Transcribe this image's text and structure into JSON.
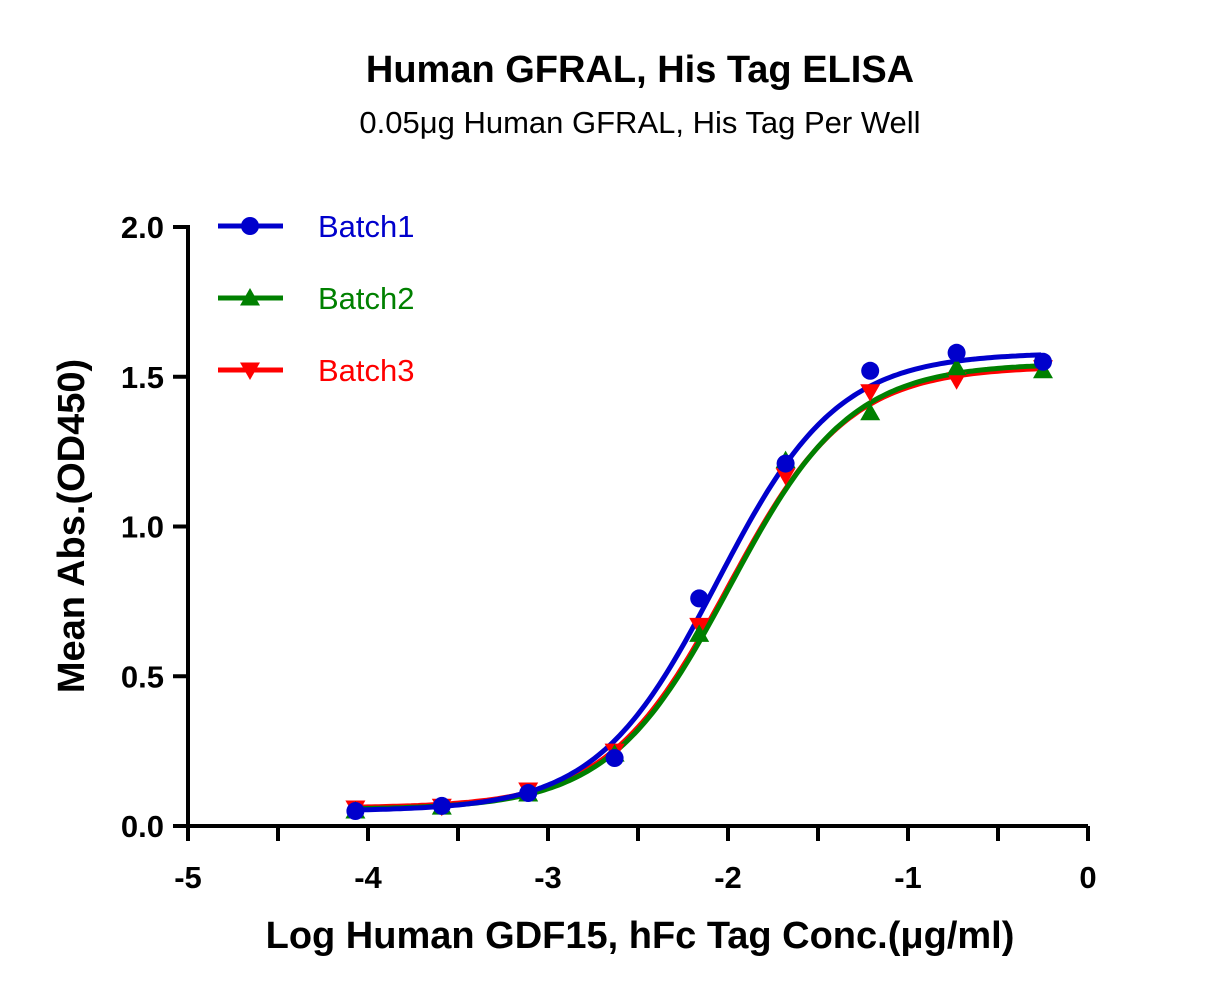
{
  "chart_data": {
    "type": "scatter",
    "title": "Human GFRAL, His Tag ELISA",
    "subtitle": "0.05μg Human GFRAL, His Tag Per Well",
    "xlabel": "Log Human GDF15, hFc Tag Conc.(μg/ml)",
    "ylabel": "Mean Abs.(OD450)",
    "xlim": [
      -5,
      0
    ],
    "ylim": [
      0,
      2.0
    ],
    "xticks": [
      "-5",
      "-4",
      "-3",
      "-2",
      "-1",
      "0"
    ],
    "yticks": [
      "0.0",
      "0.5",
      "1.0",
      "1.5",
      "2.0"
    ],
    "grid": false,
    "legend_position": "top-left",
    "x": [
      -4.07,
      -3.59,
      -3.11,
      -2.63,
      -2.16,
      -1.68,
      -1.21,
      -0.73,
      -0.25
    ],
    "series": [
      {
        "name": "Batch1",
        "color": "#0000CC",
        "marker": "circle",
        "values": [
          0.05,
          0.067,
          0.11,
          0.227,
          0.76,
          1.21,
          1.52,
          1.58,
          1.55
        ]
      },
      {
        "name": "Batch2",
        "color": "#008000",
        "marker": "triangle-up",
        "values": [
          0.05,
          0.063,
          0.107,
          0.24,
          0.64,
          1.22,
          1.38,
          1.53,
          1.52
        ]
      },
      {
        "name": "Batch3",
        "color": "#FF0000",
        "marker": "triangle-down",
        "values": [
          0.06,
          0.066,
          0.12,
          0.25,
          0.67,
          1.17,
          1.45,
          1.49,
          1.53
        ]
      }
    ]
  }
}
